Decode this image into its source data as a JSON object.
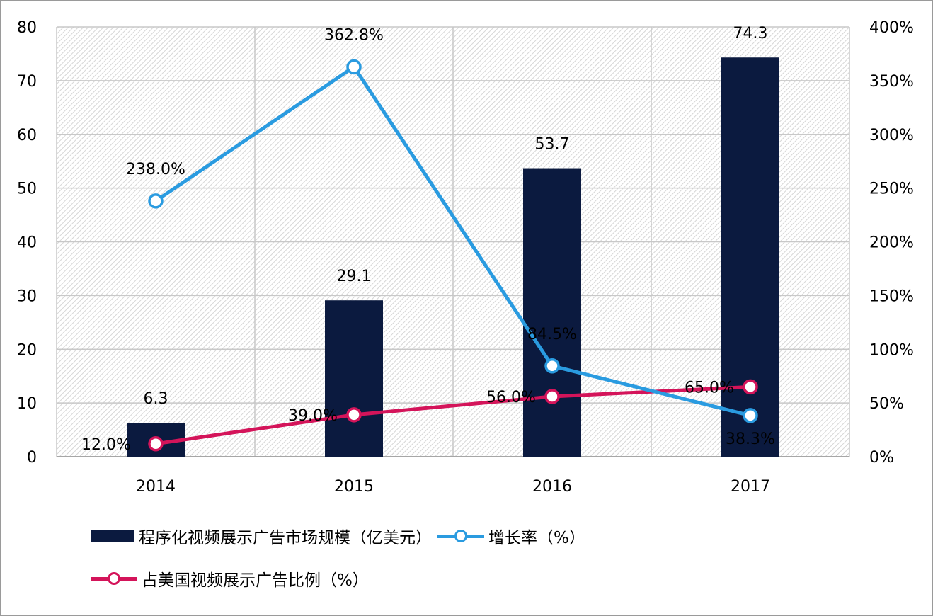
{
  "chart_data": {
    "type": "bar",
    "categories": [
      "2014",
      "2015",
      "2016",
      "2017"
    ],
    "y_left": {
      "ticks": [
        "0",
        "10",
        "20",
        "30",
        "40",
        "50",
        "60",
        "70",
        "80"
      ],
      "ylim": [
        0,
        80
      ]
    },
    "y_right": {
      "ticks": [
        "0%",
        "50%",
        "100%",
        "150%",
        "200%",
        "250%",
        "300%",
        "350%",
        "400%"
      ],
      "ylim": [
        0,
        400
      ]
    },
    "grid": true,
    "legend_position": "bottom",
    "series": [
      {
        "name": "程序化视频展示广告市场规模（亿美元）",
        "type": "bar",
        "axis": "left",
        "color": "#0b1a3f",
        "values": [
          6.3,
          29.1,
          53.7,
          74.3
        ],
        "labels": [
          "6.3",
          "29.1",
          "53.7",
          "74.3"
        ]
      },
      {
        "name": "增长率（%）",
        "type": "line",
        "axis": "right",
        "color": "#2a9be0",
        "values": [
          238.0,
          362.8,
          84.5,
          38.3
        ],
        "labels": [
          "238.0%",
          "362.8%",
          "84.5%",
          "38.3%"
        ]
      },
      {
        "name": "占美国视频展示广告比例（%）",
        "type": "line",
        "axis": "right",
        "color": "#d4145a",
        "values": [
          12.0,
          39.0,
          56.0,
          65.0
        ],
        "labels": [
          "12.0%",
          "39.0%",
          "56.0%",
          "65.0%"
        ]
      }
    ]
  }
}
